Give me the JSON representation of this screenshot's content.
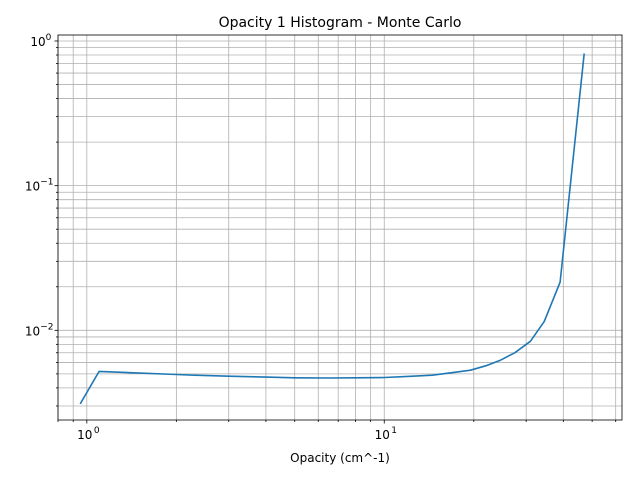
{
  "chart_data": {
    "type": "line",
    "title": "Opacity 1 Histogram - Monte Carlo",
    "xlabel": "Opacity (cm^-1)",
    "ylabel": "",
    "xscale": "log",
    "yscale": "log",
    "xlim": [
      0.8,
      63
    ],
    "ylim": [
      0.0024,
      1.1
    ],
    "grid": "major and minor",
    "line_color": "#1f77b4",
    "x_ticks": [
      {
        "value": 1,
        "base": "10",
        "exp": "0"
      },
      {
        "value": 10,
        "base": "10",
        "exp": "1"
      }
    ],
    "y_ticks": [
      {
        "value": 0.01,
        "base": "10",
        "exp": "−2"
      },
      {
        "value": 0.1,
        "base": "10",
        "exp": "−1"
      },
      {
        "value": 1,
        "base": "10",
        "exp": "0"
      }
    ],
    "series": [
      {
        "x": [
          0.95,
          1.1,
          2.0,
          2.3,
          3.0,
          4.0,
          5.0,
          6.5,
          8.0,
          10.0,
          12.0,
          14.5,
          17.0,
          19.5,
          22.0,
          24.5,
          27.5,
          31.0,
          34.5,
          39.0,
          47.0
        ],
        "y": [
          0.0031,
          0.0052,
          0.00495,
          0.0049,
          0.00482,
          0.00475,
          0.0047,
          0.00468,
          0.0047,
          0.00472,
          0.0048,
          0.0049,
          0.0051,
          0.0053,
          0.0057,
          0.0062,
          0.007,
          0.0084,
          0.0115,
          0.0215,
          0.82
        ]
      }
    ]
  }
}
